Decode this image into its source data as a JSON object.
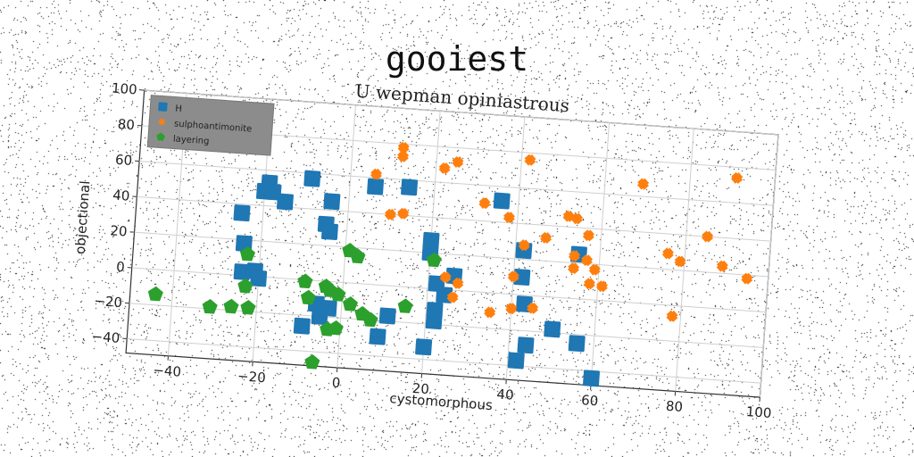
{
  "suptitle": "gooiest",
  "chart_data": {
    "type": "scatter",
    "title": "U wepman opiniastrous",
    "xlabel": "cystomorphous",
    "ylabel": "objectional",
    "xlim": [
      -50,
      100
    ],
    "ylim": [
      -48,
      100
    ],
    "xticks": [
      -40,
      -20,
      0,
      20,
      40,
      60,
      80,
      100
    ],
    "yticks": [
      -40,
      -20,
      0,
      20,
      40,
      60,
      80,
      100
    ],
    "grid": true,
    "legend_position": "top-left",
    "series": [
      {
        "name": "H",
        "color": "#1f77b4",
        "marker": "square",
        "points": [
          [
            -25,
            35
          ],
          [
            -24,
            18
          ],
          [
            -24,
            2
          ],
          [
            -21,
            3
          ],
          [
            -20,
            -1
          ],
          [
            -19,
            53
          ],
          [
            -20,
            48
          ],
          [
            -18,
            48
          ],
          [
            -15,
            43
          ],
          [
            -9,
            57
          ],
          [
            -4,
            45
          ],
          [
            -5,
            32
          ],
          [
            -4,
            28
          ],
          [
            -9,
            -26
          ],
          [
            -6,
            -13
          ],
          [
            -5,
            -20
          ],
          [
            -3,
            -15
          ],
          [
            6,
            55
          ],
          [
            14,
            56
          ],
          [
            11,
            -17
          ],
          [
            9,
            -29
          ],
          [
            20,
            27
          ],
          [
            20,
            20
          ],
          [
            22,
            3
          ],
          [
            24,
            -3
          ],
          [
            26,
            8
          ],
          [
            20,
            -33
          ],
          [
            22,
            -18
          ],
          [
            22,
            -12
          ],
          [
            36,
            52
          ],
          [
            42,
            25
          ],
          [
            42,
            10
          ],
          [
            42,
            -37
          ],
          [
            44,
            -28
          ],
          [
            43,
            -5
          ],
          [
            50,
            -18
          ],
          [
            55,
            25
          ],
          [
            56,
            -25
          ],
          [
            60,
            -44
          ]
        ]
      },
      {
        "name": "sulphoantimonite",
        "color": "#ff7f0e",
        "marker": "x",
        "points": [
          [
            6,
            62
          ],
          [
            12,
            78
          ],
          [
            12,
            73
          ],
          [
            22,
            68
          ],
          [
            25,
            72
          ],
          [
            42,
            76
          ],
          [
            10,
            40
          ],
          [
            13,
            41
          ],
          [
            32,
            50
          ],
          [
            38,
            43
          ],
          [
            42,
            28
          ],
          [
            40,
            10
          ],
          [
            47,
            33
          ],
          [
            52,
            46
          ],
          [
            54,
            45
          ],
          [
            57,
            36
          ],
          [
            54,
            24
          ],
          [
            57,
            22
          ],
          [
            54,
            17
          ],
          [
            59,
            17
          ],
          [
            58,
            9
          ],
          [
            61,
            8
          ],
          [
            24,
            7
          ],
          [
            27,
            4
          ],
          [
            26,
            -4
          ],
          [
            35,
            -11
          ],
          [
            40,
            -8
          ],
          [
            45,
            -7
          ],
          [
            69,
            67
          ],
          [
            76,
            29
          ],
          [
            79,
            25
          ],
          [
            85,
            40
          ],
          [
            89,
            24
          ],
          [
            91,
            74
          ],
          [
            95,
            18
          ],
          [
            78,
            -6
          ]
        ]
      },
      {
        "name": "layering",
        "color": "#2ca02c",
        "marker": "pentagon",
        "points": [
          [
            -44,
            -14
          ],
          [
            -31,
            -19
          ],
          [
            -26,
            -18
          ],
          [
            -22,
            -18
          ],
          [
            -23,
            12
          ],
          [
            -23,
            -6
          ],
          [
            -9,
            -1
          ],
          [
            -8,
            -10
          ],
          [
            -4,
            -3
          ],
          [
            -3,
            -5
          ],
          [
            -1,
            -7
          ],
          [
            -3,
            -27
          ],
          [
            -1,
            -26
          ],
          [
            1,
            18
          ],
          [
            3,
            15
          ],
          [
            2,
            -12
          ],
          [
            5,
            -17
          ],
          [
            7,
            -20
          ],
          [
            15,
            -11
          ],
          [
            21,
            16
          ],
          [
            -6,
            -46
          ]
        ]
      }
    ]
  }
}
